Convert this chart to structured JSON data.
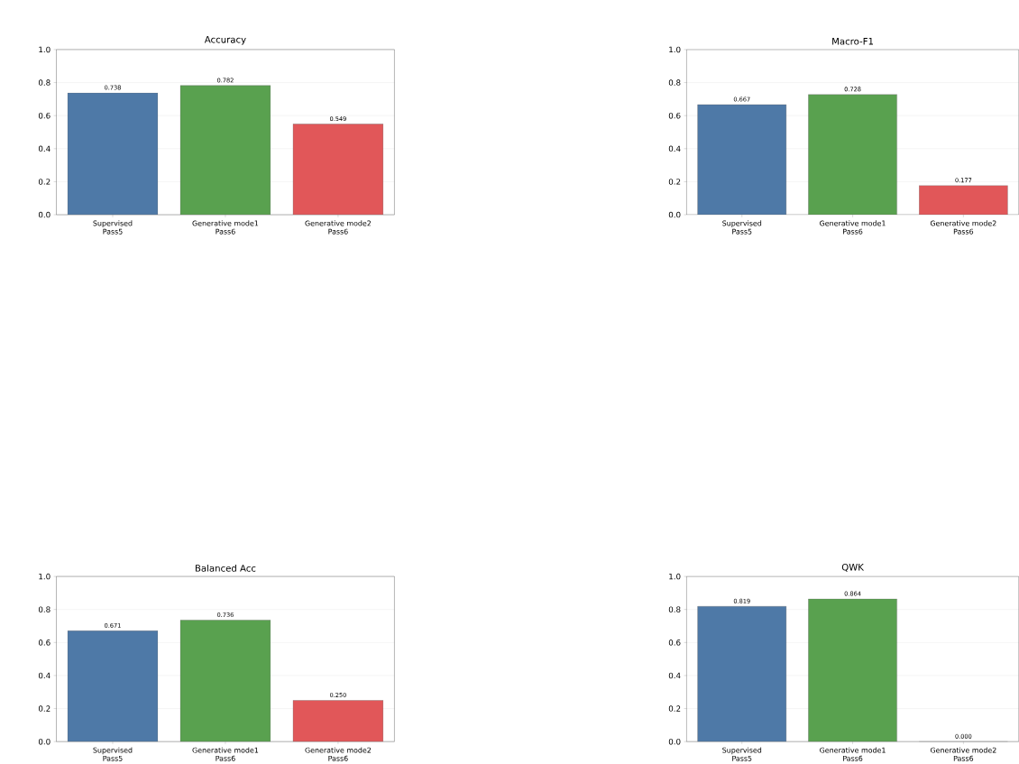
{
  "chart_data": [
    {
      "type": "bar",
      "title": "Accuracy",
      "categories": [
        "Supervised\nPass5",
        "Generative mode1\nPass6",
        "Generative mode2\nPass6"
      ],
      "values": [
        0.738,
        0.782,
        0.549
      ],
      "value_labels": [
        "0.738",
        "0.782",
        "0.549"
      ],
      "colors": [
        "#4e79a7",
        "#59a14f",
        "#e15759"
      ],
      "ylim": [
        0,
        1
      ],
      "yticks": [
        {
          "value": 0,
          "label": "0.0"
        },
        {
          "value": 0.2,
          "label": "0.2"
        },
        {
          "value": 0.4,
          "label": "0.4"
        },
        {
          "value": 0.6,
          "label": "0.6"
        },
        {
          "value": 0.8,
          "label": "0.8"
        },
        {
          "value": 1,
          "label": "1.0"
        }
      ],
      "grid": "y"
    },
    {
      "type": "bar",
      "title": "Macro-F1",
      "categories": [
        "Supervised\nPass5",
        "Generative mode1\nPass6",
        "Generative mode2\nPass6"
      ],
      "values": [
        0.667,
        0.728,
        0.177
      ],
      "value_labels": [
        "0.667",
        "0.728",
        "0.177"
      ],
      "colors": [
        "#4e79a7",
        "#59a14f",
        "#e15759"
      ],
      "ylim": [
        0,
        1
      ],
      "yticks": [
        {
          "value": 0,
          "label": "0.0"
        },
        {
          "value": 0.2,
          "label": "0.2"
        },
        {
          "value": 0.4,
          "label": "0.4"
        },
        {
          "value": 0.6,
          "label": "0.6"
        },
        {
          "value": 0.8,
          "label": "0.8"
        },
        {
          "value": 1,
          "label": "1.0"
        }
      ],
      "grid": "y"
    },
    {
      "type": "bar",
      "title": "Balanced Acc",
      "categories": [
        "Supervised\nPass5",
        "Generative mode1\nPass6",
        "Generative mode2\nPass6"
      ],
      "values": [
        0.671,
        0.736,
        0.25
      ],
      "value_labels": [
        "0.671",
        "0.736",
        "0.250"
      ],
      "colors": [
        "#4e79a7",
        "#59a14f",
        "#e15759"
      ],
      "ylim": [
        0,
        1
      ],
      "yticks": [
        {
          "value": 0,
          "label": "0.0"
        },
        {
          "value": 0.2,
          "label": "0.2"
        },
        {
          "value": 0.4,
          "label": "0.4"
        },
        {
          "value": 0.6,
          "label": "0.6"
        },
        {
          "value": 0.8,
          "label": "0.8"
        },
        {
          "value": 1,
          "label": "1.0"
        }
      ],
      "grid": "y"
    },
    {
      "type": "bar",
      "title": "QWK",
      "categories": [
        "Supervised\nPass5",
        "Generative mode1\nPass6",
        "Generative mode2\nPass6"
      ],
      "values": [
        0.819,
        0.864,
        0
      ],
      "value_labels": [
        "0.819",
        "0.864",
        "0.000"
      ],
      "colors": [
        "#4e79a7",
        "#59a14f",
        "#e15759"
      ],
      "ylim": [
        0,
        1
      ],
      "yticks": [
        {
          "value": 0,
          "label": "0.0"
        },
        {
          "value": 0.2,
          "label": "0.2"
        },
        {
          "value": 0.4,
          "label": "0.4"
        },
        {
          "value": 0.6,
          "label": "0.6"
        },
        {
          "value": 0.8,
          "label": "0.8"
        },
        {
          "value": 1,
          "label": "1.0"
        }
      ],
      "grid": "y"
    }
  ]
}
